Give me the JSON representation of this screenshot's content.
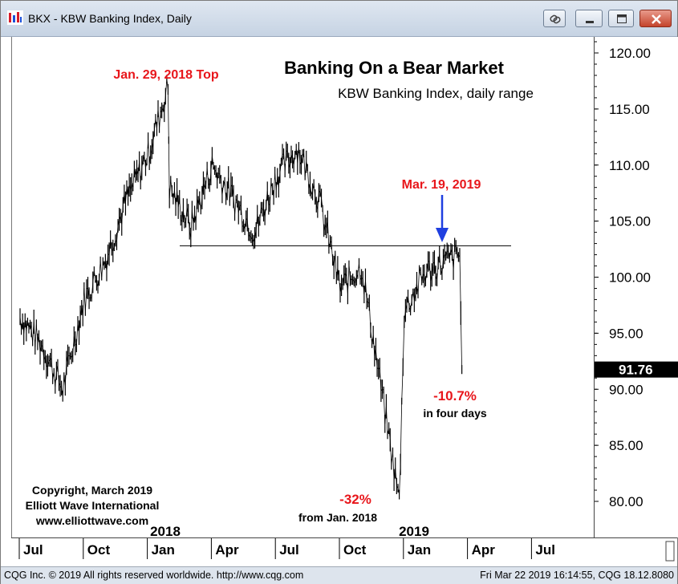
{
  "window": {
    "title": "BKX - KBW Banking Index, Daily"
  },
  "status": {
    "left": "CQG Inc. © 2019 All rights reserved worldwide. http://www.cqg.com",
    "right": "Fri Mar 22 2019 16:14:55, CQG 18.12.8080"
  },
  "colors": {
    "price_line": "#000000",
    "annotation_red": "#e8161b",
    "arrow_blue": "#1f3fe0",
    "title_bar": "#c6d3e3"
  },
  "chart_data": {
    "type": "line",
    "title": "Banking On a Bear Market",
    "subtitle": "KBW Banking Index, daily range",
    "series": [
      {
        "values_x": [
          "2017-07",
          "2017-08",
          "2017-09",
          "2017-10",
          "2017-11",
          "2017-12",
          "2018-01",
          "2018-01-29",
          "2018-02",
          "2018-03",
          "2018-04",
          "2018-05",
          "2018-06",
          "2018-07",
          "2018-08",
          "2018-09",
          "2018-10",
          "2018-11",
          "2018-12-24",
          "2019-01",
          "2019-02",
          "2019-03-19",
          "2019-03-22"
        ],
        "values_y": [
          96.5,
          94,
          90,
          98,
          101.5,
          107,
          111,
          117,
          108,
          104.5,
          110,
          107,
          104,
          109,
          111.5,
          107,
          99,
          101,
          80,
          97,
          100.5,
          102,
          91.76
        ]
      }
    ],
    "ylim": [
      79,
      122
    ],
    "yticks": [
      "120.00",
      "115.00",
      "110.00",
      "105.00",
      "100.00",
      "95.00",
      "90.00",
      "85.00",
      "80.00"
    ],
    "last_price": "91.76",
    "x_ticks": [
      "Jul",
      "Oct",
      "Jan",
      "Apr",
      "Jul",
      "Oct",
      "Jan",
      "Apr",
      "Jul"
    ],
    "year_labels": [
      "2018",
      "2019"
    ],
    "reference_line": 102.8,
    "annotations": {
      "top": "Jan. 29, 2018 Top",
      "mar19": "Mar. 19, 2019",
      "drop_pct": "-10.7%",
      "drop_note": "in four days",
      "decline_pct": "-32%",
      "decline_note": "from Jan. 2018"
    },
    "copyright": [
      "Copyright, March 2019",
      "Elliott Wave International",
      "www.elliottwave.com"
    ],
    "grid": false
  }
}
